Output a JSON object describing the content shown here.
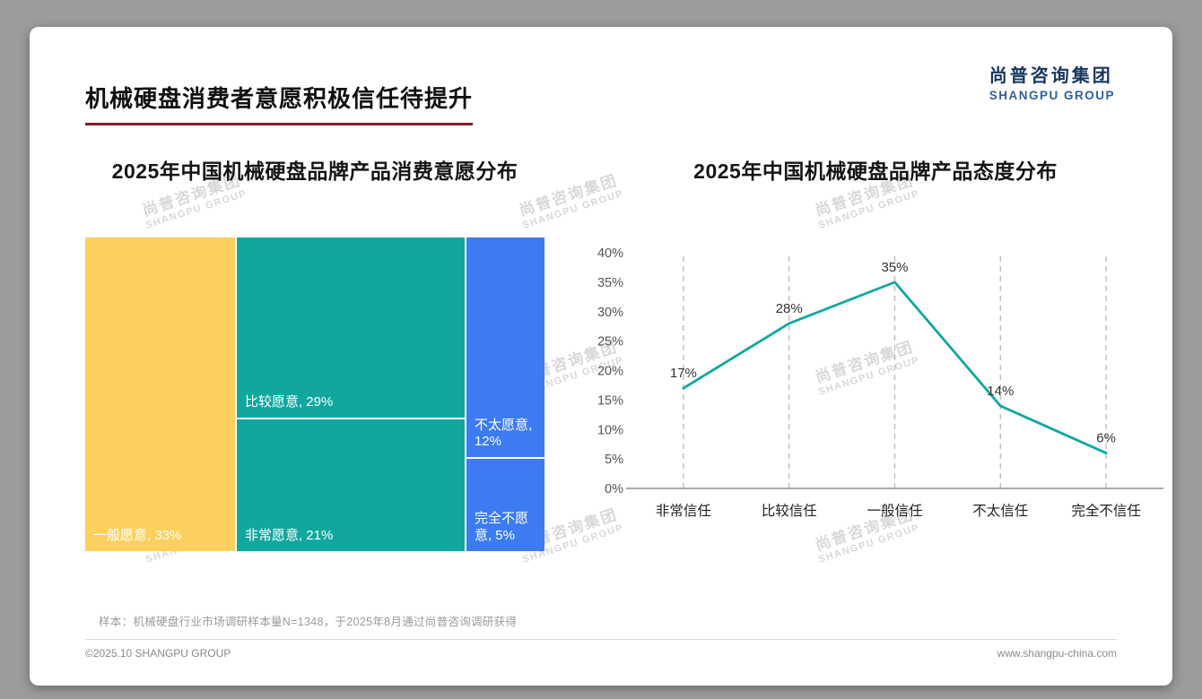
{
  "page": {
    "title": "机械硬盘消费者意愿积极信任待提升",
    "logo": {
      "cn": "尚普咨询集团",
      "en": "SHANGPU GROUP"
    },
    "watermark": {
      "cn": "尚普咨询集团",
      "en": "SHANGPU GROUP"
    },
    "footnote": "样本：机械硬盘行业市场调研样本量N=1348，于2025年8月通过尚普咨询调研获得",
    "footer_left": "©2025.10 SHANGPU GROUP",
    "footer_right": "www.shangpu-china.com"
  },
  "colors": {
    "title_underline": "#7E1F2B",
    "logo_navy": "#17365D",
    "logo_blue": "#2E5F9E",
    "treemap_yellow": "#FCD05E",
    "teal": "#10A79E",
    "blue": "#3C7BF2",
    "watermark_gray": "#D8D8D8",
    "axis_gray": "#8F8F8F",
    "grid_gray": "#BDBDBD"
  },
  "chart_data": [
    {
      "type": "treemap",
      "title": "2025年中国机械硬盘品牌产品消费意愿分布",
      "blocks": [
        {
          "label": "一般愿意",
          "value": 33,
          "color": "#FCD05E"
        },
        {
          "label": "比较愿意",
          "value": 29,
          "color": "#10A79E"
        },
        {
          "label": "非常愿意",
          "value": 21,
          "color": "#10A79E"
        },
        {
          "label": "不太愿意",
          "value": 12,
          "color": "#3C7BF2"
        },
        {
          "label": "完全不愿意",
          "value": 5,
          "color": "#3C7BF2"
        }
      ],
      "columns": [
        [
          0
        ],
        [
          1,
          2
        ],
        [
          3,
          4
        ]
      ],
      "label_format": "{label}, {value}%"
    },
    {
      "type": "line",
      "title": "2025年中国机械硬盘品牌产品态度分布",
      "categories": [
        "非常信任",
        "比较信任",
        "一般信任",
        "不太信任",
        "完全不信任"
      ],
      "values": [
        17,
        28,
        35,
        14,
        6
      ],
      "ylim": [
        0,
        40
      ],
      "ytick_step": 5,
      "ytick_suffix": "%",
      "data_label_suffix": "%",
      "line_color": "#10A79E",
      "grid": "dashed-vertical",
      "legend": "none"
    }
  ]
}
